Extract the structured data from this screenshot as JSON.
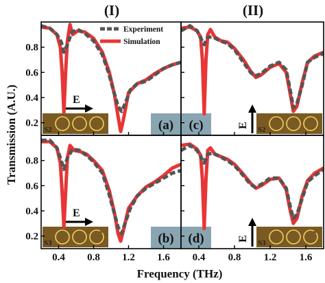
{
  "figure": {
    "columns": [
      "(I)",
      "(II)"
    ],
    "xlabel": "Frequency (THz)",
    "ylabel": "Transmission (A.U.)",
    "legend": [
      "Experiment",
      "Simulation"
    ],
    "colors": {
      "experiment": "#555555",
      "simulation": "#e83535",
      "inset_bg": "#7a5a22",
      "ring": "#f0d060",
      "label_box": "#8aa5b2"
    }
  },
  "chart_data": [
    {
      "type": "line",
      "panel": "(a)",
      "sample": "S2",
      "field_label": "E",
      "field_direction": "horizontal",
      "xlim": [
        0.2,
        1.8
      ],
      "ylim": [
        0.1,
        1.0
      ],
      "xticks": [
        "0.4",
        "0.8",
        "1.2",
        "1.6"
      ],
      "yticks": [
        "0.2",
        "0.4",
        "0.6",
        "0.8"
      ],
      "series": [
        {
          "name": "Experiment",
          "points": [
            [
              0.2,
              0.97
            ],
            [
              0.3,
              0.95
            ],
            [
              0.38,
              0.9
            ],
            [
              0.43,
              0.84
            ],
            [
              0.46,
              0.76
            ],
            [
              0.5,
              0.82
            ],
            [
              0.55,
              0.92
            ],
            [
              0.62,
              0.94
            ],
            [
              0.7,
              0.91
            ],
            [
              0.8,
              0.85
            ],
            [
              0.9,
              0.74
            ],
            [
              0.97,
              0.6
            ],
            [
              1.03,
              0.45
            ],
            [
              1.08,
              0.33
            ],
            [
              1.12,
              0.29
            ],
            [
              1.16,
              0.35
            ],
            [
              1.22,
              0.46
            ],
            [
              1.3,
              0.51
            ],
            [
              1.4,
              0.53
            ],
            [
              1.5,
              0.58
            ],
            [
              1.6,
              0.63
            ],
            [
              1.7,
              0.66
            ],
            [
              1.8,
              0.68
            ]
          ]
        },
        {
          "name": "Simulation",
          "points": [
            [
              0.2,
              0.96
            ],
            [
              0.3,
              0.95
            ],
            [
              0.38,
              0.9
            ],
            [
              0.42,
              0.8
            ],
            [
              0.44,
              0.6
            ],
            [
              0.46,
              0.28
            ],
            [
              0.48,
              0.6
            ],
            [
              0.5,
              0.85
            ],
            [
              0.53,
              0.98
            ],
            [
              0.56,
              0.9
            ],
            [
              0.62,
              0.93
            ],
            [
              0.7,
              0.92
            ],
            [
              0.8,
              0.87
            ],
            [
              0.9,
              0.76
            ],
            [
              0.98,
              0.6
            ],
            [
              1.04,
              0.42
            ],
            [
              1.08,
              0.25
            ],
            [
              1.11,
              0.13
            ],
            [
              1.14,
              0.22
            ],
            [
              1.2,
              0.44
            ],
            [
              1.3,
              0.51
            ],
            [
              1.4,
              0.54
            ],
            [
              1.5,
              0.59
            ],
            [
              1.6,
              0.63
            ],
            [
              1.7,
              0.66
            ],
            [
              1.8,
              0.68
            ]
          ]
        }
      ]
    },
    {
      "type": "line",
      "panel": "(c)",
      "sample": "S2",
      "field_label": "E",
      "field_direction": "vertical",
      "xlim": [
        0.2,
        1.8
      ],
      "ylim": [
        0.1,
        1.0
      ],
      "xticks": [
        "0.4",
        "0.8",
        "1.2",
        "1.6"
      ],
      "yticks": [
        "0.2",
        "0.4",
        "0.6",
        "0.8"
      ],
      "series": [
        {
          "name": "Experiment",
          "points": [
            [
              0.2,
              0.93
            ],
            [
              0.3,
              0.97
            ],
            [
              0.38,
              0.93
            ],
            [
              0.43,
              0.86
            ],
            [
              0.46,
              0.82
            ],
            [
              0.5,
              0.88
            ],
            [
              0.56,
              0.88
            ],
            [
              0.64,
              0.85
            ],
            [
              0.72,
              0.83
            ],
            [
              0.8,
              0.78
            ],
            [
              0.9,
              0.68
            ],
            [
              0.98,
              0.6
            ],
            [
              1.03,
              0.57
            ],
            [
              1.1,
              0.59
            ],
            [
              1.2,
              0.65
            ],
            [
              1.3,
              0.68
            ],
            [
              1.38,
              0.62
            ],
            [
              1.43,
              0.44
            ],
            [
              1.46,
              0.32
            ],
            [
              1.5,
              0.35
            ],
            [
              1.56,
              0.5
            ],
            [
              1.62,
              0.68
            ],
            [
              1.7,
              0.72
            ],
            [
              1.8,
              0.75
            ]
          ]
        },
        {
          "name": "Simulation",
          "points": [
            [
              0.2,
              0.95
            ],
            [
              0.3,
              0.96
            ],
            [
              0.38,
              0.93
            ],
            [
              0.42,
              0.88
            ],
            [
              0.44,
              0.7
            ],
            [
              0.46,
              0.27
            ],
            [
              0.48,
              0.7
            ],
            [
              0.5,
              0.9
            ],
            [
              0.53,
              0.94
            ],
            [
              0.58,
              0.88
            ],
            [
              0.65,
              0.85
            ],
            [
              0.72,
              0.84
            ],
            [
              0.8,
              0.79
            ],
            [
              0.9,
              0.7
            ],
            [
              0.98,
              0.61
            ],
            [
              1.04,
              0.56
            ],
            [
              1.1,
              0.58
            ],
            [
              1.2,
              0.64
            ],
            [
              1.3,
              0.67
            ],
            [
              1.38,
              0.6
            ],
            [
              1.42,
              0.45
            ],
            [
              1.46,
              0.29
            ],
            [
              1.5,
              0.33
            ],
            [
              1.56,
              0.52
            ],
            [
              1.62,
              0.68
            ],
            [
              1.7,
              0.73
            ],
            [
              1.8,
              0.76
            ]
          ]
        }
      ]
    },
    {
      "type": "line",
      "panel": "(b)",
      "sample": "S3",
      "field_label": "E",
      "field_direction": "horizontal",
      "xlim": [
        0.2,
        1.8
      ],
      "ylim": [
        0.1,
        1.0
      ],
      "xticks": [
        "0.4",
        "0.8",
        "1.2",
        "1.6"
      ],
      "yticks": [
        "0.2",
        "0.4",
        "0.6",
        "0.8"
      ],
      "series": [
        {
          "name": "Experiment",
          "points": [
            [
              0.2,
              0.96
            ],
            [
              0.3,
              0.96
            ],
            [
              0.38,
              0.9
            ],
            [
              0.43,
              0.8
            ],
            [
              0.46,
              0.73
            ],
            [
              0.5,
              0.82
            ],
            [
              0.56,
              0.89
            ],
            [
              0.64,
              0.88
            ],
            [
              0.72,
              0.84
            ],
            [
              0.8,
              0.79
            ],
            [
              0.9,
              0.7
            ],
            [
              0.97,
              0.55
            ],
            [
              1.03,
              0.4
            ],
            [
              1.08,
              0.27
            ],
            [
              1.12,
              0.22
            ],
            [
              1.16,
              0.3
            ],
            [
              1.22,
              0.42
            ],
            [
              1.3,
              0.52
            ],
            [
              1.4,
              0.58
            ],
            [
              1.5,
              0.62
            ],
            [
              1.6,
              0.66
            ],
            [
              1.7,
              0.7
            ],
            [
              1.8,
              0.72
            ]
          ]
        },
        {
          "name": "Simulation",
          "points": [
            [
              0.2,
              0.95
            ],
            [
              0.3,
              0.95
            ],
            [
              0.38,
              0.9
            ],
            [
              0.42,
              0.78
            ],
            [
              0.44,
              0.55
            ],
            [
              0.46,
              0.27
            ],
            [
              0.48,
              0.55
            ],
            [
              0.5,
              0.82
            ],
            [
              0.53,
              0.92
            ],
            [
              0.58,
              0.88
            ],
            [
              0.65,
              0.87
            ],
            [
              0.72,
              0.85
            ],
            [
              0.8,
              0.8
            ],
            [
              0.9,
              0.72
            ],
            [
              0.98,
              0.56
            ],
            [
              1.04,
              0.38
            ],
            [
              1.08,
              0.22
            ],
            [
              1.11,
              0.16
            ],
            [
              1.14,
              0.24
            ],
            [
              1.2,
              0.42
            ],
            [
              1.3,
              0.52
            ],
            [
              1.4,
              0.59
            ],
            [
              1.5,
              0.63
            ],
            [
              1.6,
              0.68
            ],
            [
              1.7,
              0.74
            ],
            [
              1.8,
              0.77
            ]
          ]
        }
      ]
    },
    {
      "type": "line",
      "panel": "(d)",
      "sample": "S3",
      "field_label": "E",
      "field_direction": "vertical",
      "xlim": [
        0.2,
        1.8
      ],
      "ylim": [
        0.1,
        1.0
      ],
      "xticks": [
        "0.4",
        "0.8",
        "1.2",
        "1.6"
      ],
      "yticks": [
        "0.2",
        "0.4",
        "0.6",
        "0.8"
      ],
      "series": [
        {
          "name": "Experiment",
          "points": [
            [
              0.2,
              0.88
            ],
            [
              0.3,
              0.92
            ],
            [
              0.38,
              0.88
            ],
            [
              0.43,
              0.82
            ],
            [
              0.46,
              0.78
            ],
            [
              0.5,
              0.85
            ],
            [
              0.56,
              0.86
            ],
            [
              0.64,
              0.83
            ],
            [
              0.72,
              0.8
            ],
            [
              0.8,
              0.76
            ],
            [
              0.9,
              0.68
            ],
            [
              0.98,
              0.61
            ],
            [
              1.03,
              0.59
            ],
            [
              1.1,
              0.61
            ],
            [
              1.2,
              0.66
            ],
            [
              1.3,
              0.66
            ],
            [
              1.38,
              0.58
            ],
            [
              1.43,
              0.42
            ],
            [
              1.46,
              0.34
            ],
            [
              1.5,
              0.37
            ],
            [
              1.56,
              0.5
            ],
            [
              1.62,
              0.63
            ],
            [
              1.7,
              0.68
            ],
            [
              1.8,
              0.73
            ]
          ]
        },
        {
          "name": "Simulation",
          "points": [
            [
              0.2,
              0.92
            ],
            [
              0.3,
              0.93
            ],
            [
              0.38,
              0.89
            ],
            [
              0.42,
              0.84
            ],
            [
              0.44,
              0.65
            ],
            [
              0.46,
              0.26
            ],
            [
              0.48,
              0.65
            ],
            [
              0.5,
              0.88
            ],
            [
              0.53,
              0.9
            ],
            [
              0.58,
              0.85
            ],
            [
              0.65,
              0.83
            ],
            [
              0.72,
              0.81
            ],
            [
              0.8,
              0.77
            ],
            [
              0.9,
              0.69
            ],
            [
              0.98,
              0.62
            ],
            [
              1.04,
              0.58
            ],
            [
              1.1,
              0.6
            ],
            [
              1.2,
              0.65
            ],
            [
              1.3,
              0.66
            ],
            [
              1.38,
              0.57
            ],
            [
              1.42,
              0.42
            ],
            [
              1.46,
              0.3
            ],
            [
              1.5,
              0.34
            ],
            [
              1.56,
              0.52
            ],
            [
              1.62,
              0.64
            ],
            [
              1.7,
              0.7
            ],
            [
              1.8,
              0.74
            ]
          ]
        }
      ]
    }
  ]
}
